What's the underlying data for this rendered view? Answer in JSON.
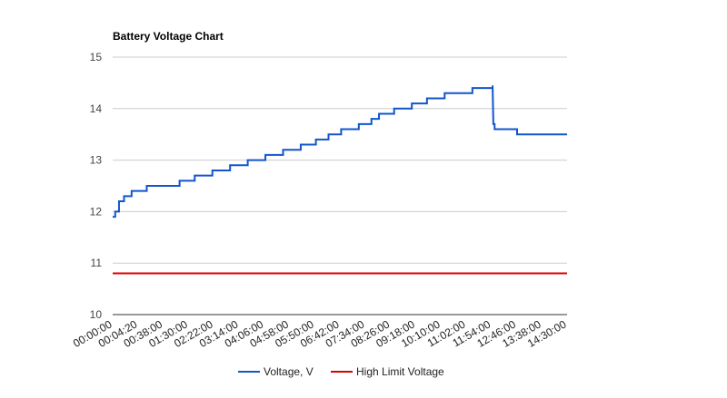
{
  "chart_data": {
    "type": "line",
    "title": "Battery Voltage Chart",
    "xlabel": "",
    "ylabel": "",
    "ylim": [
      10,
      15
    ],
    "yticks": [
      10,
      11,
      12,
      13,
      14,
      15
    ],
    "grid": true,
    "legend_position": "bottom",
    "x_tick_labels": [
      "00:00:00",
      "00:04:20",
      "00:38:00",
      "01:30:00",
      "02:22:00",
      "03:14:00",
      "04:06:00",
      "04:58:00",
      "05:50:00",
      "06:42:00",
      "07:34:00",
      "08:26:00",
      "09:18:00",
      "10:10:00",
      "11:02:00",
      "11:54:00",
      "12:46:00",
      "13:38:00",
      "14:30:00"
    ],
    "series": [
      {
        "name": "Voltage, V",
        "color": "#1155cc",
        "points": [
          [
            0.0,
            11.9
          ],
          [
            0.1,
            11.9
          ],
          [
            0.1,
            12.0
          ],
          [
            0.25,
            12.0
          ],
          [
            0.25,
            12.2
          ],
          [
            0.45,
            12.2
          ],
          [
            0.45,
            12.3
          ],
          [
            0.75,
            12.3
          ],
          [
            0.75,
            12.4
          ],
          [
            1.35,
            12.4
          ],
          [
            1.35,
            12.5
          ],
          [
            2.65,
            12.5
          ],
          [
            2.65,
            12.6
          ],
          [
            3.25,
            12.6
          ],
          [
            3.25,
            12.7
          ],
          [
            3.95,
            12.7
          ],
          [
            3.95,
            12.8
          ],
          [
            4.65,
            12.8
          ],
          [
            4.65,
            12.9
          ],
          [
            5.35,
            12.9
          ],
          [
            5.35,
            13.0
          ],
          [
            6.05,
            13.0
          ],
          [
            6.05,
            13.1
          ],
          [
            6.75,
            13.1
          ],
          [
            6.75,
            13.2
          ],
          [
            7.45,
            13.2
          ],
          [
            7.45,
            13.3
          ],
          [
            8.05,
            13.3
          ],
          [
            8.05,
            13.4
          ],
          [
            8.55,
            13.4
          ],
          [
            8.55,
            13.5
          ],
          [
            9.05,
            13.5
          ],
          [
            9.05,
            13.6
          ],
          [
            9.75,
            13.6
          ],
          [
            9.75,
            13.7
          ],
          [
            10.25,
            13.7
          ],
          [
            10.25,
            13.8
          ],
          [
            10.55,
            13.8
          ],
          [
            10.55,
            13.9
          ],
          [
            11.15,
            13.9
          ],
          [
            11.15,
            14.0
          ],
          [
            11.85,
            14.0
          ],
          [
            11.85,
            14.1
          ],
          [
            12.45,
            14.1
          ],
          [
            12.45,
            14.2
          ],
          [
            13.15,
            14.2
          ],
          [
            13.15,
            14.3
          ],
          [
            14.25,
            14.3
          ],
          [
            14.25,
            14.4
          ],
          [
            15.05,
            14.4
          ],
          [
            15.05,
            14.45
          ],
          [
            15.08,
            13.7
          ],
          [
            15.13,
            13.7
          ],
          [
            15.13,
            13.6
          ],
          [
            16.02,
            13.6
          ],
          [
            16.02,
            13.5
          ],
          [
            18.0,
            13.5
          ]
        ]
      },
      {
        "name": "High Limit Voltage",
        "color": "#dd0000",
        "points": [
          [
            0,
            10.8
          ],
          [
            18,
            10.8
          ]
        ]
      }
    ]
  }
}
